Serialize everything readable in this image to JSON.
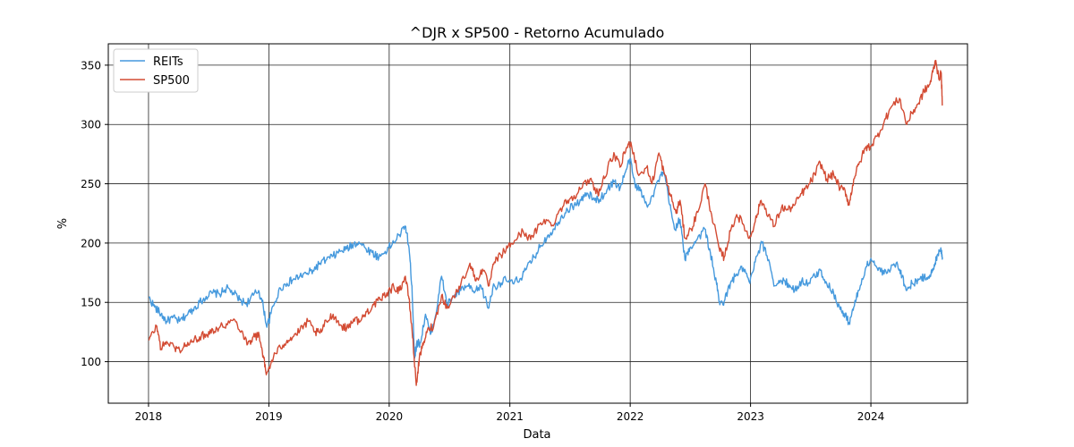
{
  "chart_data": {
    "type": "line",
    "title": "^DJR x SP500 - Retorno Acumulado",
    "xlabel": "Data",
    "ylabel": "%",
    "xlim": [
      "2017-09-01",
      "2024-10-20"
    ],
    "ylim": [
      65,
      368
    ],
    "x_ticks": [
      "2018",
      "2019",
      "2020",
      "2021",
      "2022",
      "2023",
      "2024"
    ],
    "y_ticks": [
      100,
      150,
      200,
      250,
      300,
      350
    ],
    "grid": true,
    "legend_position": "top-left",
    "series": [
      {
        "name": "REITs",
        "color": "#4599dd",
        "points": [
          [
            "2018-01-02",
            154
          ],
          [
            "2018-01-20",
            146
          ],
          [
            "2018-02-08",
            140
          ],
          [
            "2018-02-25",
            134
          ],
          [
            "2018-03-15",
            137
          ],
          [
            "2018-04-05",
            134
          ],
          [
            "2018-04-25",
            139
          ],
          [
            "2018-05-15",
            144
          ],
          [
            "2018-06-05",
            150
          ],
          [
            "2018-06-25",
            155
          ],
          [
            "2018-07-15",
            158
          ],
          [
            "2018-08-05",
            157
          ],
          [
            "2018-08-25",
            162
          ],
          [
            "2018-09-15",
            158
          ],
          [
            "2018-10-05",
            152
          ],
          [
            "2018-10-25",
            149
          ],
          [
            "2018-11-15",
            156
          ],
          [
            "2018-12-01",
            160
          ],
          [
            "2018-12-15",
            147
          ],
          [
            "2018-12-26",
            129
          ],
          [
            "2019-01-15",
            147
          ],
          [
            "2019-02-05",
            162
          ],
          [
            "2019-02-25",
            166
          ],
          [
            "2019-03-15",
            169
          ],
          [
            "2019-04-05",
            172
          ],
          [
            "2019-04-25",
            174
          ],
          [
            "2019-05-15",
            177
          ],
          [
            "2019-06-05",
            183
          ],
          [
            "2019-06-25",
            186
          ],
          [
            "2019-07-15",
            189
          ],
          [
            "2019-08-05",
            193
          ],
          [
            "2019-08-25",
            195
          ],
          [
            "2019-09-15",
            199
          ],
          [
            "2019-10-01",
            201
          ],
          [
            "2019-10-20",
            196
          ],
          [
            "2019-11-10",
            192
          ],
          [
            "2019-12-01",
            188
          ],
          [
            "2019-12-20",
            193
          ],
          [
            "2020-01-10",
            199
          ],
          [
            "2020-02-01",
            207
          ],
          [
            "2020-02-20",
            214
          ],
          [
            "2020-03-01",
            196
          ],
          [
            "2020-03-10",
            164
          ],
          [
            "2020-03-18",
            103
          ],
          [
            "2020-03-24",
            115
          ],
          [
            "2020-04-05",
            116
          ],
          [
            "2020-04-20",
            140
          ],
          [
            "2020-05-05",
            123
          ],
          [
            "2020-05-20",
            138
          ],
          [
            "2020-06-08",
            172
          ],
          [
            "2020-06-25",
            148
          ],
          [
            "2020-07-15",
            155
          ],
          [
            "2020-08-05",
            160
          ],
          [
            "2020-08-25",
            164
          ],
          [
            "2020-09-15",
            158
          ],
          [
            "2020-10-05",
            164
          ],
          [
            "2020-10-28",
            145
          ],
          [
            "2020-11-10",
            162
          ],
          [
            "2020-12-01",
            166
          ],
          [
            "2020-12-20",
            169
          ],
          [
            "2021-01-10",
            166
          ],
          [
            "2021-02-01",
            170
          ],
          [
            "2021-02-20",
            178
          ],
          [
            "2021-03-15",
            188
          ],
          [
            "2021-04-05",
            198
          ],
          [
            "2021-04-25",
            206
          ],
          [
            "2021-05-15",
            212
          ],
          [
            "2021-06-05",
            222
          ],
          [
            "2021-06-25",
            228
          ],
          [
            "2021-07-15",
            232
          ],
          [
            "2021-08-05",
            236
          ],
          [
            "2021-08-25",
            242
          ],
          [
            "2021-09-15",
            236
          ],
          [
            "2021-10-05",
            238
          ],
          [
            "2021-10-25",
            246
          ],
          [
            "2021-11-15",
            252
          ],
          [
            "2021-12-01",
            246
          ],
          [
            "2021-12-20",
            262
          ],
          [
            "2021-12-31",
            271
          ],
          [
            "2022-01-15",
            250
          ],
          [
            "2022-02-01",
            244
          ],
          [
            "2022-02-20",
            232
          ],
          [
            "2022-03-10",
            240
          ],
          [
            "2022-04-01",
            256
          ],
          [
            "2022-04-15",
            258
          ],
          [
            "2022-05-01",
            232
          ],
          [
            "2022-05-15",
            212
          ],
          [
            "2022-06-01",
            220
          ],
          [
            "2022-06-16",
            186
          ],
          [
            "2022-07-01",
            196
          ],
          [
            "2022-07-20",
            202
          ],
          [
            "2022-08-15",
            212
          ],
          [
            "2022-09-01",
            192
          ],
          [
            "2022-09-20",
            165
          ],
          [
            "2022-09-30",
            148
          ],
          [
            "2022-10-15",
            152
          ],
          [
            "2022-11-01",
            166
          ],
          [
            "2022-11-20",
            174
          ],
          [
            "2022-12-10",
            179
          ],
          [
            "2022-12-30",
            166
          ],
          [
            "2023-01-15",
            184
          ],
          [
            "2023-02-05",
            200
          ],
          [
            "2023-02-25",
            186
          ],
          [
            "2023-03-15",
            164
          ],
          [
            "2023-04-05",
            168
          ],
          [
            "2023-04-25",
            166
          ],
          [
            "2023-05-15",
            160
          ],
          [
            "2023-06-05",
            168
          ],
          [
            "2023-06-25",
            166
          ],
          [
            "2023-07-15",
            172
          ],
          [
            "2023-08-01",
            177
          ],
          [
            "2023-08-20",
            166
          ],
          [
            "2023-09-10",
            158
          ],
          [
            "2023-09-30",
            144
          ],
          [
            "2023-10-15",
            139
          ],
          [
            "2023-10-27",
            133
          ],
          [
            "2023-11-10",
            146
          ],
          [
            "2023-11-25",
            160
          ],
          [
            "2023-12-15",
            178
          ],
          [
            "2024-01-01",
            187
          ],
          [
            "2024-01-20",
            179
          ],
          [
            "2024-02-10",
            174
          ],
          [
            "2024-03-01",
            178
          ],
          [
            "2024-03-20",
            184
          ],
          [
            "2024-04-05",
            172
          ],
          [
            "2024-04-18",
            160
          ],
          [
            "2024-05-05",
            166
          ],
          [
            "2024-05-25",
            169
          ],
          [
            "2024-06-10",
            171
          ],
          [
            "2024-06-28",
            173
          ],
          [
            "2024-07-10",
            178
          ],
          [
            "2024-07-20",
            190
          ],
          [
            "2024-07-31",
            196
          ],
          [
            "2024-08-05",
            188
          ]
        ]
      },
      {
        "name": "SP500",
        "color": "#d34b33",
        "points": [
          [
            "2018-01-02",
            118
          ],
          [
            "2018-01-26",
            130
          ],
          [
            "2018-02-08",
            111
          ],
          [
            "2018-02-25",
            117
          ],
          [
            "2018-03-20",
            112
          ],
          [
            "2018-04-05",
            110
          ],
          [
            "2018-04-25",
            114
          ],
          [
            "2018-05-15",
            117
          ],
          [
            "2018-06-05",
            121
          ],
          [
            "2018-06-25",
            123
          ],
          [
            "2018-07-15",
            127
          ],
          [
            "2018-08-05",
            129
          ],
          [
            "2018-08-25",
            132
          ],
          [
            "2018-09-20",
            135
          ],
          [
            "2018-10-10",
            126
          ],
          [
            "2018-10-29",
            115
          ],
          [
            "2018-11-15",
            121
          ],
          [
            "2018-12-03",
            122
          ],
          [
            "2018-12-15",
            105
          ],
          [
            "2018-12-24",
            89
          ],
          [
            "2019-01-15",
            104
          ],
          [
            "2019-02-05",
            112
          ],
          [
            "2019-02-25",
            118
          ],
          [
            "2019-03-15",
            121
          ],
          [
            "2019-04-05",
            126
          ],
          [
            "2019-04-30",
            134
          ],
          [
            "2019-05-20",
            125
          ],
          [
            "2019-06-05",
            124
          ],
          [
            "2019-06-25",
            134
          ],
          [
            "2019-07-15",
            140
          ],
          [
            "2019-08-05",
            131
          ],
          [
            "2019-08-25",
            128
          ],
          [
            "2019-09-15",
            136
          ],
          [
            "2019-10-05",
            134
          ],
          [
            "2019-10-25",
            142
          ],
          [
            "2019-11-15",
            148
          ],
          [
            "2019-12-05",
            152
          ],
          [
            "2019-12-25",
            158
          ],
          [
            "2020-01-15",
            163
          ],
          [
            "2020-02-01",
            160
          ],
          [
            "2020-02-19",
            172
          ],
          [
            "2020-03-01",
            153
          ],
          [
            "2020-03-10",
            128
          ],
          [
            "2020-03-23",
            80
          ],
          [
            "2020-04-01",
            102
          ],
          [
            "2020-04-15",
            117
          ],
          [
            "2020-04-30",
            128
          ],
          [
            "2020-05-15",
            130
          ],
          [
            "2020-06-08",
            156
          ],
          [
            "2020-06-25",
            145
          ],
          [
            "2020-07-15",
            155
          ],
          [
            "2020-08-05",
            165
          ],
          [
            "2020-09-02",
            183
          ],
          [
            "2020-09-20",
            168
          ],
          [
            "2020-10-10",
            178
          ],
          [
            "2020-10-30",
            164
          ],
          [
            "2020-11-15",
            184
          ],
          [
            "2020-12-05",
            190
          ],
          [
            "2020-12-25",
            196
          ],
          [
            "2021-01-15",
            202
          ],
          [
            "2021-02-10",
            210
          ],
          [
            "2021-03-05",
            203
          ],
          [
            "2021-03-25",
            212
          ],
          [
            "2021-04-15",
            220
          ],
          [
            "2021-05-10",
            215
          ],
          [
            "2021-06-01",
            228
          ],
          [
            "2021-06-25",
            236
          ],
          [
            "2021-07-15",
            240
          ],
          [
            "2021-08-05",
            246
          ],
          [
            "2021-09-01",
            254
          ],
          [
            "2021-09-25",
            242
          ],
          [
            "2021-10-05",
            247
          ],
          [
            "2021-10-25",
            264
          ],
          [
            "2021-11-15",
            274
          ],
          [
            "2021-12-01",
            264
          ],
          [
            "2021-12-20",
            280
          ],
          [
            "2022-01-03",
            285
          ],
          [
            "2022-01-27",
            257
          ],
          [
            "2022-02-20",
            264
          ],
          [
            "2022-03-08",
            250
          ],
          [
            "2022-03-29",
            276
          ],
          [
            "2022-04-15",
            258
          ],
          [
            "2022-05-01",
            242
          ],
          [
            "2022-05-20",
            225
          ],
          [
            "2022-06-01",
            236
          ],
          [
            "2022-06-16",
            204
          ],
          [
            "2022-07-05",
            212
          ],
          [
            "2022-07-25",
            226
          ],
          [
            "2022-08-16",
            250
          ],
          [
            "2022-09-05",
            224
          ],
          [
            "2022-09-30",
            193
          ],
          [
            "2022-10-13",
            188
          ],
          [
            "2022-11-01",
            210
          ],
          [
            "2022-11-20",
            224
          ],
          [
            "2022-12-10",
            216
          ],
          [
            "2022-12-28",
            204
          ],
          [
            "2023-01-15",
            218
          ],
          [
            "2023-02-02",
            236
          ],
          [
            "2023-02-25",
            224
          ],
          [
            "2023-03-13",
            214
          ],
          [
            "2023-04-05",
            230
          ],
          [
            "2023-04-25",
            228
          ],
          [
            "2023-05-15",
            232
          ],
          [
            "2023-06-05",
            242
          ],
          [
            "2023-06-25",
            248
          ],
          [
            "2023-07-15",
            258
          ],
          [
            "2023-07-31",
            268
          ],
          [
            "2023-08-20",
            254
          ],
          [
            "2023-09-10",
            258
          ],
          [
            "2023-09-30",
            246
          ],
          [
            "2023-10-15",
            244
          ],
          [
            "2023-10-27",
            232
          ],
          [
            "2023-11-10",
            254
          ],
          [
            "2023-11-25",
            266
          ],
          [
            "2023-12-15",
            280
          ],
          [
            "2024-01-01",
            282
          ],
          [
            "2024-01-20",
            290
          ],
          [
            "2024-02-10",
            302
          ],
          [
            "2024-03-01",
            314
          ],
          [
            "2024-03-28",
            322
          ],
          [
            "2024-04-19",
            300
          ],
          [
            "2024-05-05",
            310
          ],
          [
            "2024-05-25",
            318
          ],
          [
            "2024-06-10",
            328
          ],
          [
            "2024-06-28",
            334
          ],
          [
            "2024-07-10",
            348
          ],
          [
            "2024-07-16",
            354
          ],
          [
            "2024-07-25",
            338
          ],
          [
            "2024-08-01",
            344
          ],
          [
            "2024-08-05",
            316
          ]
        ]
      }
    ]
  }
}
